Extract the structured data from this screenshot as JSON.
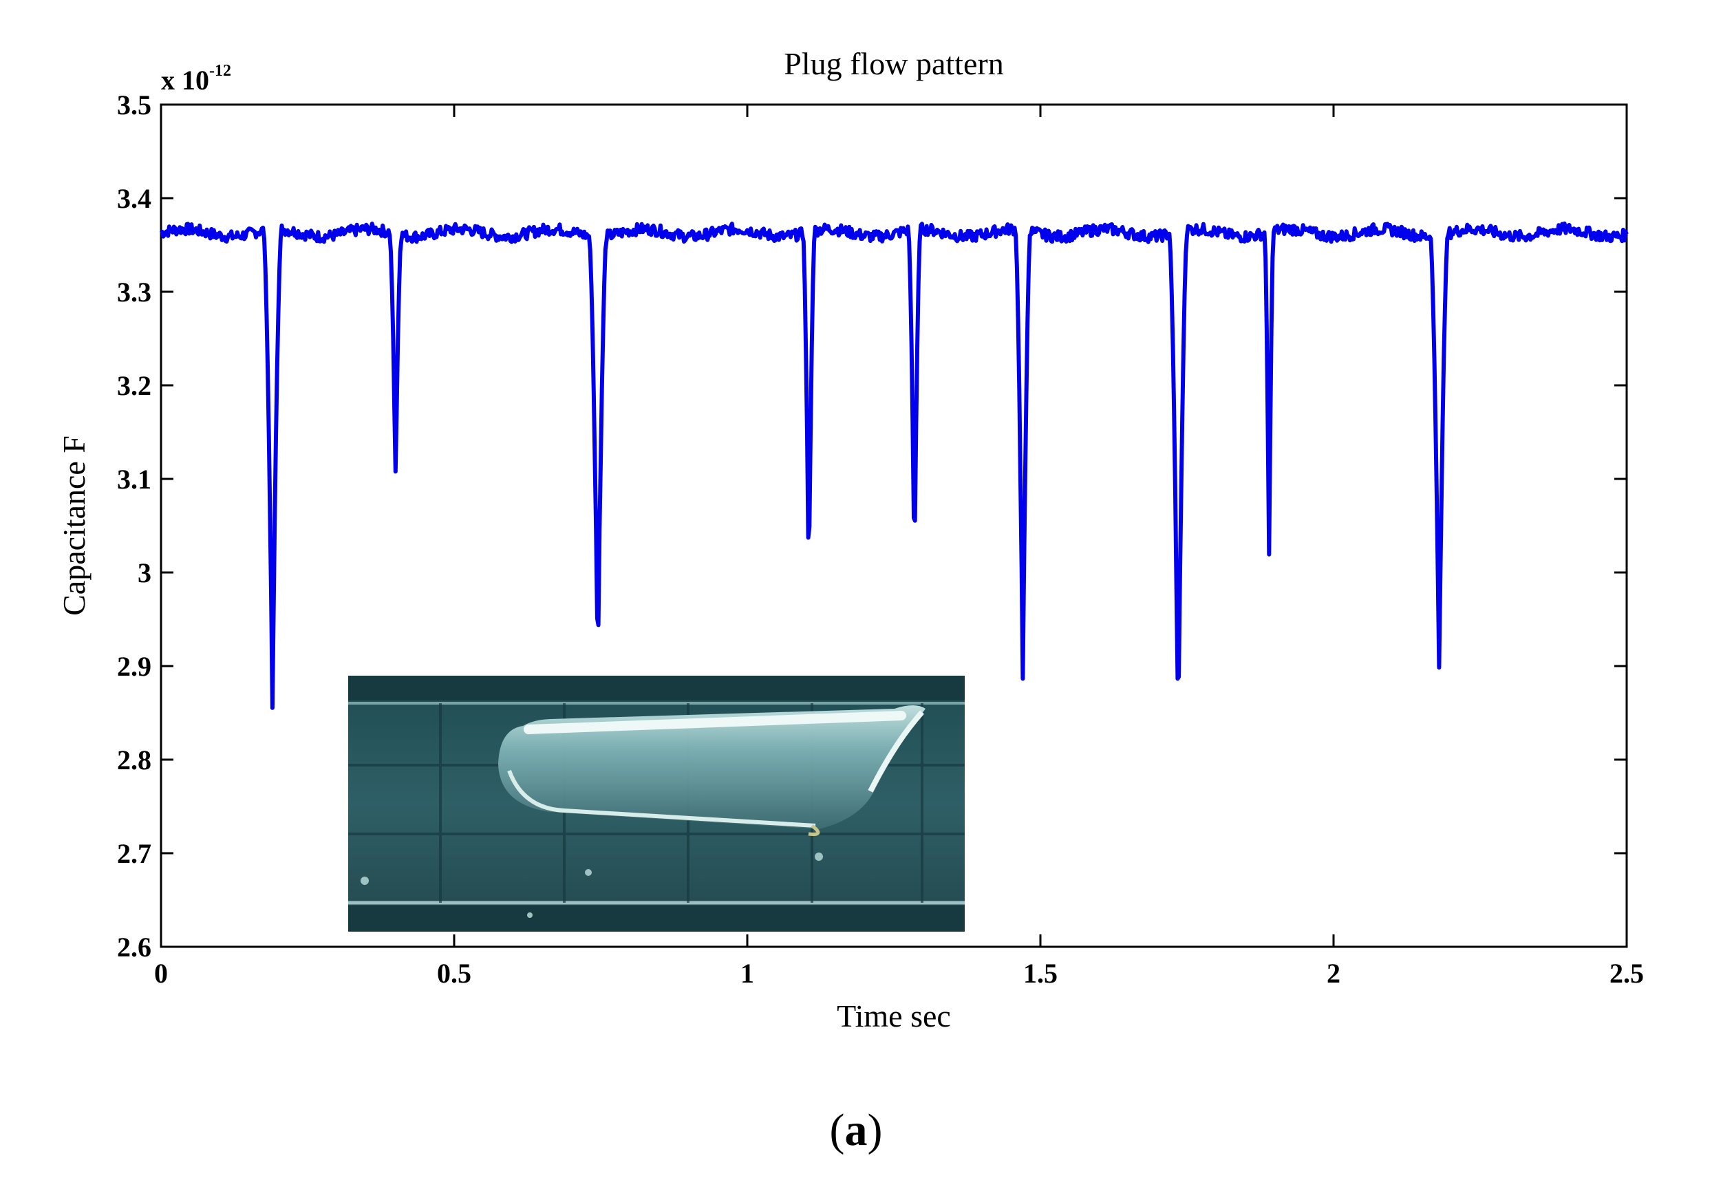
{
  "chart_data": {
    "type": "line",
    "title": "Plug flow pattern",
    "xlabel": "Time sec",
    "ylabel": "Capacitance F",
    "y_exponent_label": "x 10",
    "y_exponent_power": "-12",
    "xlim": [
      0,
      2.5
    ],
    "ylim": [
      2.6,
      3.5
    ],
    "x_ticks": [
      "0",
      "0.5",
      "1",
      "1.5",
      "2",
      "2.5"
    ],
    "y_ticks": [
      "2.6",
      "2.7",
      "2.8",
      "2.9",
      "3",
      "3.1",
      "3.2",
      "3.3",
      "3.4",
      "3.5"
    ],
    "grid": false,
    "baseline": 3.363,
    "series": [
      {
        "color": "#0000ee",
        "dips": [
          {
            "t": 0.19,
            "min": 2.86,
            "width": 0.03
          },
          {
            "t": 0.4,
            "min": 3.1,
            "width": 0.02
          },
          {
            "t": 0.745,
            "min": 2.905,
            "width": 0.03
          },
          {
            "t": 1.105,
            "min": 2.985,
            "width": 0.02
          },
          {
            "t": 1.285,
            "min": 3.0,
            "width": 0.02
          },
          {
            "t": 1.47,
            "min": 2.88,
            "width": 0.025
          },
          {
            "t": 1.735,
            "min": 2.825,
            "width": 0.03
          },
          {
            "t": 1.89,
            "min": 3.01,
            "width": 0.015
          },
          {
            "t": 2.18,
            "min": 2.9,
            "width": 0.03
          }
        ]
      }
    ]
  },
  "inset": {
    "description_icon": "plug-flow-photo",
    "background": "#2c5b63"
  },
  "caption": {
    "open": "(",
    "letter": "a",
    "close": ")"
  }
}
